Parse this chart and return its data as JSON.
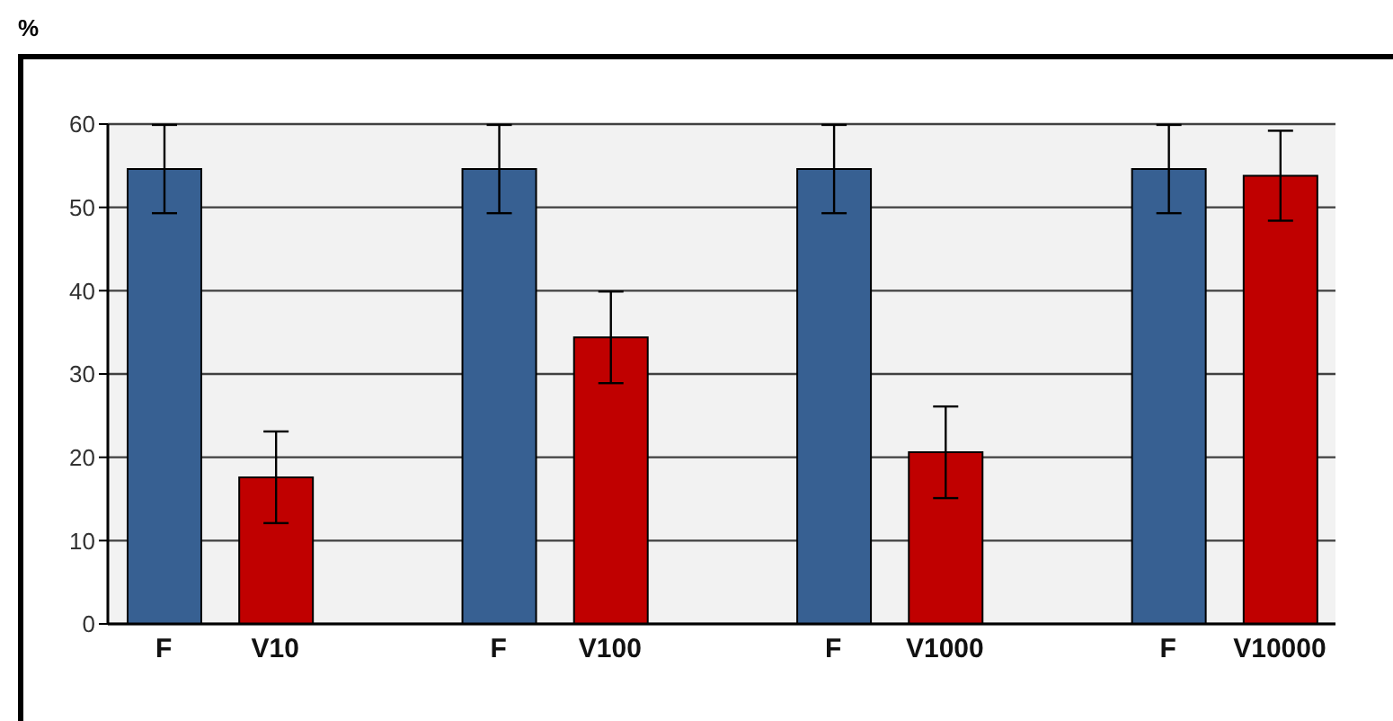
{
  "chart_data": {
    "type": "bar",
    "ylabel": "%",
    "categories": [
      "F",
      "V10",
      null,
      "F",
      "V100",
      null,
      "F",
      "V1000",
      null,
      "F",
      "V10000"
    ],
    "values": [
      54.6,
      17.6,
      null,
      54.6,
      34.4,
      null,
      54.6,
      20.6,
      null,
      54.6,
      53.8
    ],
    "errors": [
      5.3,
      5.5,
      null,
      5.3,
      5.5,
      null,
      5.3,
      5.5,
      null,
      5.3,
      5.4
    ],
    "colors": [
      "#376092",
      "#c00000",
      null,
      "#376092",
      "#c00000",
      null,
      "#376092",
      "#c00000",
      null,
      "#376092",
      "#c00000"
    ],
    "ylim": [
      0,
      60
    ],
    "yticks": [
      0,
      10,
      20,
      30,
      40,
      50,
      60
    ],
    "grid": "y",
    "legend": false
  }
}
